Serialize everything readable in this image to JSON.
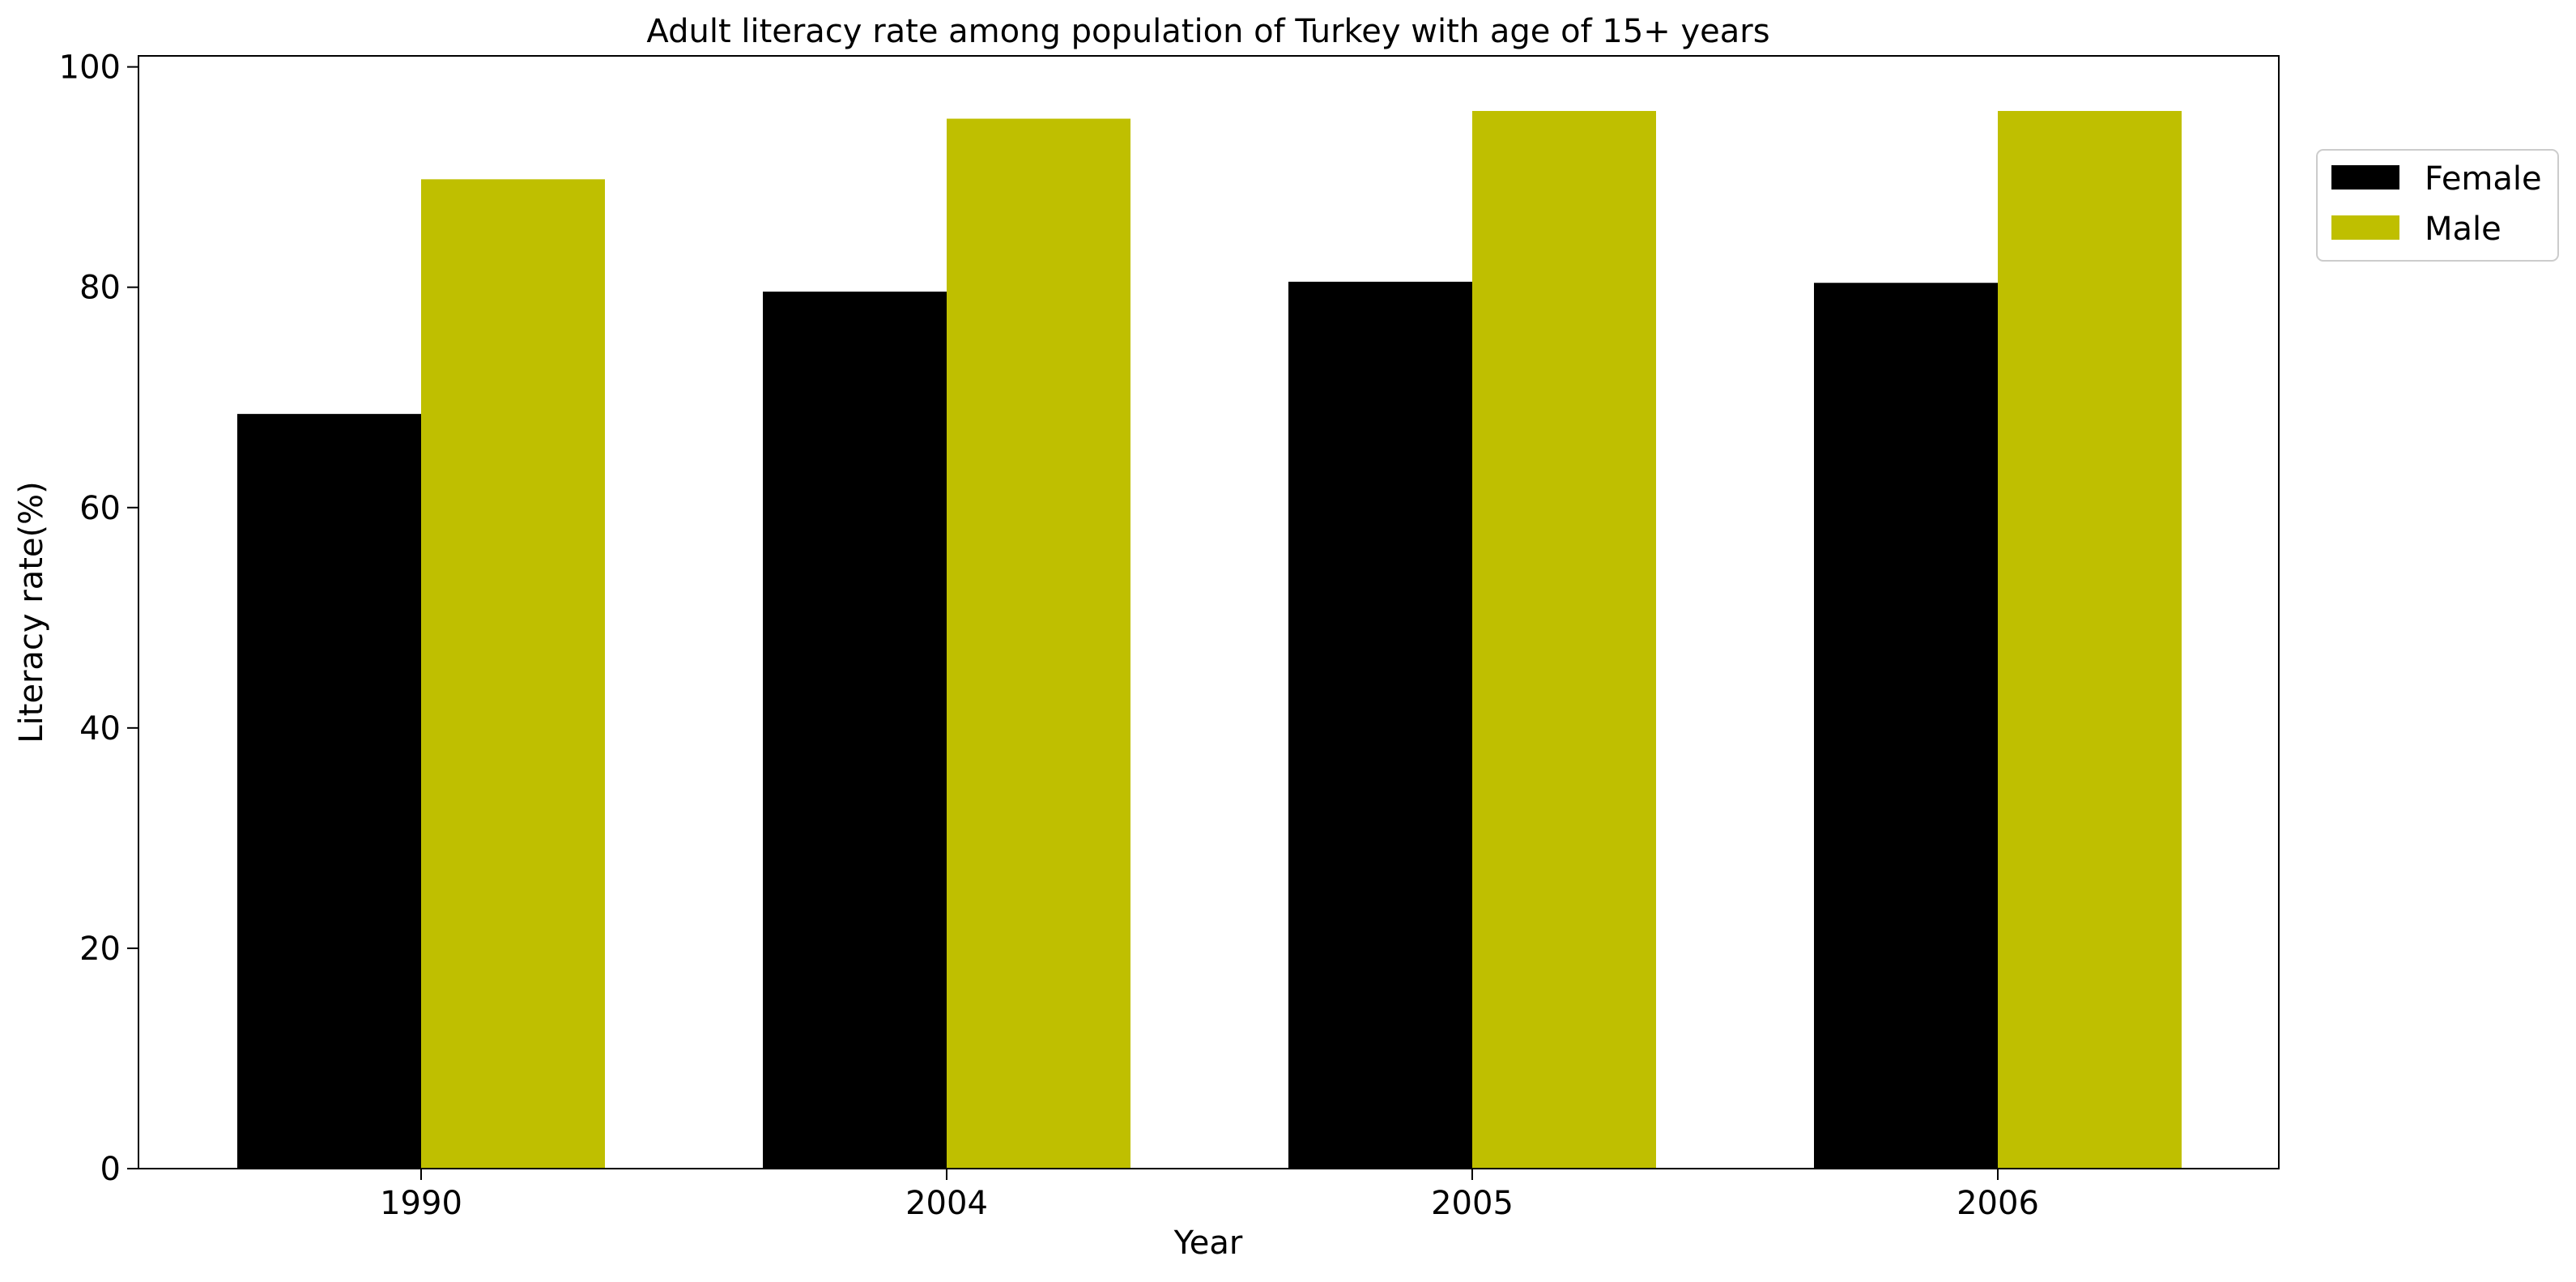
{
  "chart_data": {
    "type": "bar",
    "title": "Adult literacy rate among population of Turkey with age of 15+ years",
    "xlabel": "Year",
    "ylabel": "Literacy rate(%)",
    "categories": [
      "1990",
      "2004",
      "2005",
      "2006"
    ],
    "series": [
      {
        "name": "Female",
        "color": "#000000",
        "values": [
          68.5,
          79.6,
          80.5,
          80.4
        ]
      },
      {
        "name": "Male",
        "color": "#bfbf00",
        "values": [
          89.8,
          95.3,
          96.0,
          96.0
        ]
      }
    ],
    "ylim": [
      0,
      101
    ],
    "yticks": [
      0,
      20,
      40,
      60,
      80,
      100
    ],
    "grid": false,
    "legend": "upper right, outside plot area"
  }
}
